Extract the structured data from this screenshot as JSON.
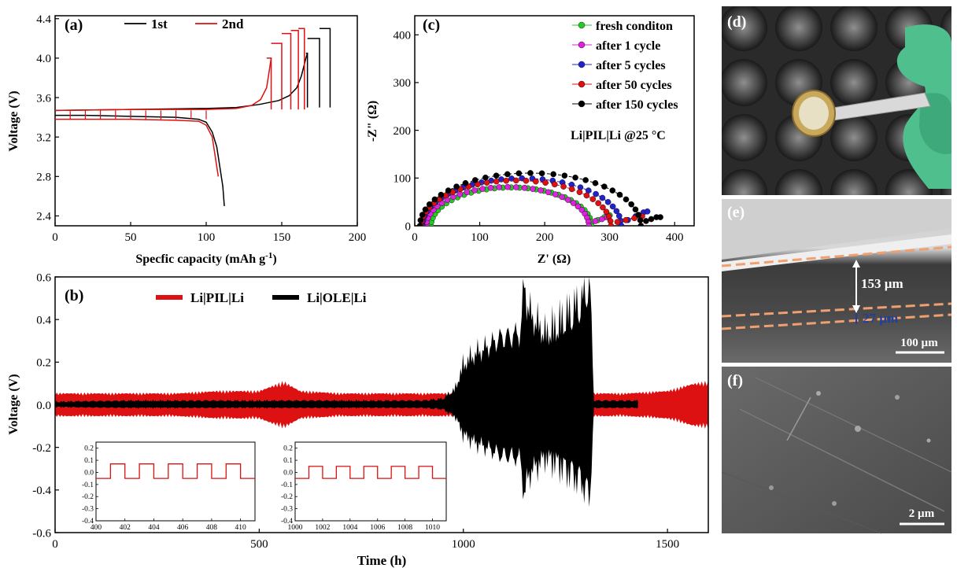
{
  "colors": {
    "red": "#dd1111",
    "black": "#000000",
    "green": "#22cc22",
    "magenta": "#dd22dd",
    "blue": "#2222cc",
    "red_marker": "#dd1111",
    "scale_bar": "#ffffff",
    "annot_blue": "#1f3fa0",
    "dash_orange": "#f0a070"
  },
  "chart_data": [
    {
      "id": "a",
      "type": "line",
      "panel_label": "(a)",
      "xlabel": "Specfic capacity (mAh g",
      "xlabel_sup": "-1",
      "xlabel_tail": ")",
      "ylabel": "Voltage (V)",
      "xlim": [
        0,
        200
      ],
      "ylim": [
        2.3,
        4.43
      ],
      "xticks": [
        "0",
        "50",
        "100",
        "150",
        "200"
      ],
      "xtick_values": [
        0,
        50,
        100,
        150,
        200
      ],
      "yticks": [
        "2.4",
        "2.8",
        "3.2",
        "3.6",
        "4.0",
        "4.4"
      ],
      "ytick_values": [
        2.4,
        2.8,
        3.2,
        3.6,
        4.0,
        4.4
      ],
      "series": [
        {
          "name": "1st",
          "color": "#000000",
          "charge": {
            "x": [
              0,
              50,
              100,
              120,
              135,
              148,
              155,
              160,
              163,
              166,
              167
            ],
            "y": [
              3.47,
              3.48,
              3.49,
              3.5,
              3.53,
              3.57,
              3.62,
              3.7,
              3.82,
              4.0,
              4.05
            ]
          },
          "pulses": [
            {
              "x_start": 166,
              "x_end": 167,
              "y_top": 4.05,
              "y_bottom": 3.5
            },
            {
              "x_start": 167,
              "x_end": 175,
              "y_top": 4.2,
              "y_bottom": 3.5
            },
            {
              "x_start": 175,
              "x_end": 182,
              "y_top": 4.3,
              "y_bottom": 3.5
            }
          ],
          "discharge": {
            "x": [
              0,
              20,
              50,
              80,
              95,
              100,
              104,
              107,
              109,
              111,
              112
            ],
            "y": [
              3.42,
              3.42,
              3.41,
              3.4,
              3.38,
              3.35,
              3.25,
              3.1,
              2.9,
              2.7,
              2.5
            ]
          }
        },
        {
          "name": "2nd",
          "color": "#dd1111",
          "charge": {
            "x": [
              0,
              50,
              100,
              120,
              130,
              136,
              140,
              143
            ],
            "y": [
              3.47,
              3.48,
              3.48,
              3.49,
              3.52,
              3.58,
              3.7,
              4.0
            ]
          },
          "pulses": [
            {
              "x_start": 140,
              "x_end": 143,
              "y_top": 4.0,
              "y_bottom": 3.48
            },
            {
              "x_start": 143,
              "x_end": 150,
              "y_top": 4.15,
              "y_bottom": 3.48
            },
            {
              "x_start": 150,
              "x_end": 156,
              "y_top": 4.25,
              "y_bottom": 3.48
            },
            {
              "x_start": 156,
              "x_end": 161,
              "y_top": 4.28,
              "y_bottom": 3.48
            },
            {
              "x_start": 161,
              "x_end": 165,
              "y_top": 4.3,
              "y_bottom": 3.48
            }
          ],
          "discharge": {
            "x": [
              0,
              20,
              50,
              80,
              95,
              100,
              104,
              106,
              108
            ],
            "y": [
              3.38,
              3.38,
              3.38,
              3.37,
              3.36,
              3.32,
              3.2,
              3.0,
              2.8
            ]
          },
          "discharge_teeth_x": [
            10,
            20,
            30,
            40,
            50,
            60,
            70,
            80,
            90,
            100
          ]
        }
      ],
      "legend_labels": [
        "1st",
        "2nd"
      ],
      "legend_position": "top"
    },
    {
      "id": "c",
      "type": "scatter",
      "panel_label": "(c)",
      "xlabel": "Z' (Ω)",
      "ylabel": "-Z\" (Ω)",
      "xlim": [
        0,
        430
      ],
      "ylim": [
        0,
        440
      ],
      "xticks": [
        "0",
        "100",
        "200",
        "300",
        "400"
      ],
      "xtick_values": [
        0,
        100,
        200,
        300,
        400
      ],
      "yticks": [
        "0",
        "100",
        "200",
        "300",
        "400"
      ],
      "ytick_values": [
        0,
        100,
        200,
        300,
        400
      ],
      "annotation": "Li|PIL|Li @25 °C",
      "series": [
        {
          "name": "fresh conditon",
          "color": "#22cc22",
          "x0": 25,
          "x1": 272,
          "tail": [
            [
              282,
              12
            ],
            [
              292,
              18
            ],
            [
              300,
              22
            ]
          ]
        },
        {
          "name": "after 1 cycle",
          "color": "#dd22dd",
          "x0": 18,
          "x1": 268,
          "tail": [
            [
              278,
              10
            ],
            [
              288,
              14
            ],
            [
              296,
              18
            ]
          ]
        },
        {
          "name": "after 5 cycles",
          "color": "#2222cc",
          "x0": 12,
          "x1": 318,
          "tail": [
            [
              328,
              12
            ],
            [
              340,
              20
            ],
            [
              352,
              28
            ],
            [
              358,
              30
            ]
          ]
        },
        {
          "name": "after 50 cycles",
          "color": "#dd1111",
          "x0": 10,
          "x1": 302,
          "tail": [
            [
              312,
              8
            ],
            [
              325,
              12
            ],
            [
              338,
              16
            ],
            [
              350,
              20
            ]
          ]
        },
        {
          "name": "after 150 cycles",
          "color": "#000000",
          "x0": 8,
          "x1": 348,
          "tail": [
            [
              356,
              10
            ],
            [
              364,
              14
            ],
            [
              372,
              18
            ],
            [
              378,
              18
            ]
          ]
        }
      ],
      "legend_position": "top-right"
    },
    {
      "id": "b",
      "type": "line",
      "panel_label": "(b)",
      "xlabel": "Time (h)",
      "ylabel": "Voltage (V)",
      "xlim": [
        0,
        1600
      ],
      "ylim": [
        -0.6,
        0.6
      ],
      "xticks": [
        "0",
        "500",
        "1000",
        "1500"
      ],
      "xtick_values": [
        0,
        500,
        1000,
        1500
      ],
      "yticks": [
        "-0.6",
        "-0.4",
        "-0.2",
        "0.0",
        "0.2",
        "0.4",
        "0.6"
      ],
      "ytick_values": [
        -0.6,
        -0.4,
        -0.2,
        0.0,
        0.2,
        0.4,
        0.6
      ],
      "series": [
        {
          "name": "Li|PIL|Li",
          "color": "#dd1111",
          "amp_x": [
            0,
            100,
            200,
            300,
            400,
            500,
            560,
            600,
            700,
            800,
            900,
            1000,
            1100,
            1200,
            1300,
            1400,
            1500,
            1560,
            1600
          ],
          "amp_y": [
            0.05,
            0.05,
            0.05,
            0.05,
            0.06,
            0.06,
            0.1,
            0.06,
            0.05,
            0.05,
            0.05,
            0.05,
            0.05,
            0.05,
            0.05,
            0.05,
            0.06,
            0.09,
            0.1
          ]
        },
        {
          "name": "Li|OLE|Li",
          "color": "#000000",
          "amp_x": [
            0,
            200,
            400,
            600,
            800,
            900,
            950,
            980,
            1000,
            1030,
            1060,
            1090,
            1120,
            1140,
            1150,
            1160,
            1200,
            1230,
            1260,
            1290,
            1310,
            1320,
            1430
          ],
          "amp_y": [
            0.015,
            0.02,
            0.02,
            0.02,
            0.02,
            0.02,
            0.03,
            0.08,
            0.2,
            0.25,
            0.28,
            0.32,
            0.33,
            0.35,
            0.6,
            0.45,
            0.35,
            0.4,
            0.45,
            0.5,
            0.6,
            0.02,
            0.02
          ]
        }
      ],
      "legend_position": "top",
      "insets": [
        {
          "xticks": [
            "400",
            "402",
            "404",
            "406",
            "408",
            "410"
          ],
          "xtick_values": [
            400,
            402,
            404,
            406,
            408,
            410
          ],
          "xlim": [
            400,
            411
          ],
          "yticks": [
            "-0.4",
            "-0.3",
            "-0.2",
            "-0.1",
            "0.0",
            "0.1",
            "0.2"
          ],
          "ytick_values": [
            -0.4,
            -0.3,
            -0.2,
            -0.1,
            0.0,
            0.1,
            0.2
          ],
          "ylim": [
            -0.4,
            0.25
          ],
          "high": 0.07,
          "low": -0.05,
          "periods": [
            [
              401,
              402
            ],
            [
              403,
              404
            ],
            [
              405,
              406
            ],
            [
              407,
              408
            ],
            [
              409,
              410
            ]
          ]
        },
        {
          "xticks": [
            "1000",
            "1002",
            "1004",
            "1006",
            "1008",
            "1010"
          ],
          "xtick_values": [
            1000,
            1002,
            1004,
            1006,
            1008,
            1010
          ],
          "xlim": [
            1000,
            1011
          ],
          "yticks": [
            "-0.4",
            "-0.3",
            "-0.2",
            "-0.1",
            "0.0",
            "0.1",
            "0.2"
          ],
          "ytick_values": [
            -0.4,
            -0.3,
            -0.2,
            -0.1,
            0.0,
            0.1,
            0.2
          ],
          "ylim": [
            -0.4,
            0.25
          ],
          "high": 0.05,
          "low": -0.05,
          "periods": [
            [
              1001,
              1002
            ],
            [
              1003,
              1004
            ],
            [
              1005,
              1006
            ],
            [
              1007,
              1008
            ],
            [
              1009,
              1010
            ]
          ]
        }
      ]
    }
  ],
  "images": [
    {
      "id": "d",
      "panel_label": "(d)",
      "description_icon": "coin-cell-tweezers-photo"
    },
    {
      "id": "e",
      "panel_label": "(e)",
      "annot1": "153 µm",
      "annot2": "27 µm",
      "scale": "100 µm"
    },
    {
      "id": "f",
      "panel_label": "(f)",
      "scale": "2 µm"
    }
  ]
}
